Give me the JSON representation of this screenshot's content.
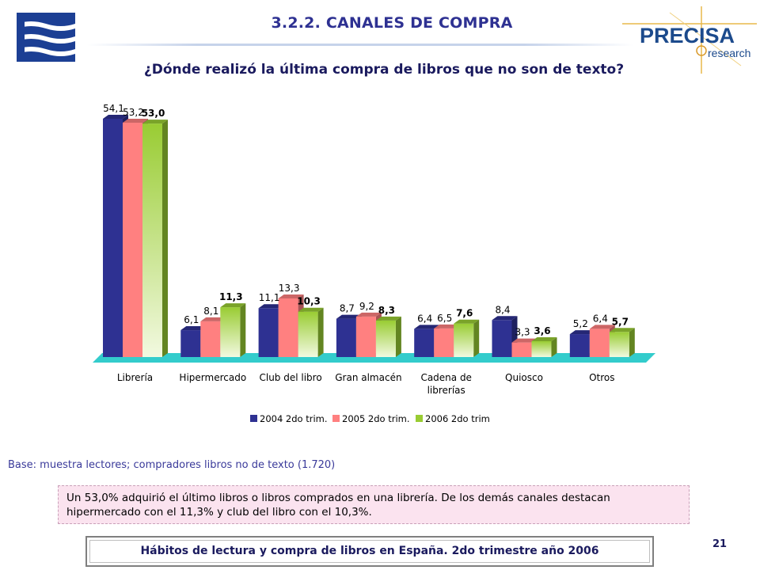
{
  "header": {
    "section_title": "3.2.2.  CANALES DE COMPRA",
    "question": "¿Dónde realizó la última compra de libros que no son de texto?",
    "logo_right_main": "PRECISA",
    "logo_right_sub": "research"
  },
  "chart_data": {
    "type": "bar",
    "categories": [
      "Librería",
      "Hipermercado",
      "Club del libro",
      "Gran almacén",
      "Cadena de librerías",
      "Quiosco",
      "Otros"
    ],
    "category_lines": [
      [
        "Librería"
      ],
      [
        "Hipermercado"
      ],
      [
        "Club del libro"
      ],
      [
        "Gran almacén"
      ],
      [
        "Cadena de",
        "librerías"
      ],
      [
        "Quiosco"
      ],
      [
        "Otros"
      ]
    ],
    "series": [
      {
        "name": "2004 2do trim.",
        "color": "#2e3192",
        "values": [
          54.1,
          6.1,
          11.1,
          8.7,
          6.4,
          8.4,
          5.2
        ],
        "labels": [
          "54,1",
          "6,1",
          "11,1",
          "8,7",
          "6,4",
          "8,4",
          "5,2"
        ]
      },
      {
        "name": "2005 2do trim.",
        "color": "#ff8080",
        "values": [
          53.2,
          8.1,
          13.3,
          9.2,
          6.5,
          3.3,
          6.4
        ],
        "labels": [
          "53,2",
          "8,1",
          "13,3",
          "9,2",
          "6,5",
          "3,3",
          "6,4"
        ]
      },
      {
        "name": "2006 2do trim",
        "color": "#99cc33",
        "values": [
          53.0,
          11.3,
          10.3,
          8.3,
          7.6,
          3.6,
          5.7
        ],
        "labels": [
          "53,0",
          "11,3",
          "10,3",
          "8,3",
          "7,6",
          "3,6",
          "5,7"
        ]
      }
    ],
    "ylim": [
      0,
      60
    ],
    "legend_position": "bottom",
    "floor_color": "#33cccc"
  },
  "base_note": "Base: muestra lectores; compradores libros no de texto (1.720)",
  "summary": "Un  53,0% adquirió el último libros o libros comprados en una librería. De los demás canales destacan hipermercado con el 11,3% y club del libro con el 10,3%.",
  "footer": {
    "text": "Hábitos de lectura y compra de libros en España. 2do trimestre año 2006",
    "page_number": "21"
  }
}
